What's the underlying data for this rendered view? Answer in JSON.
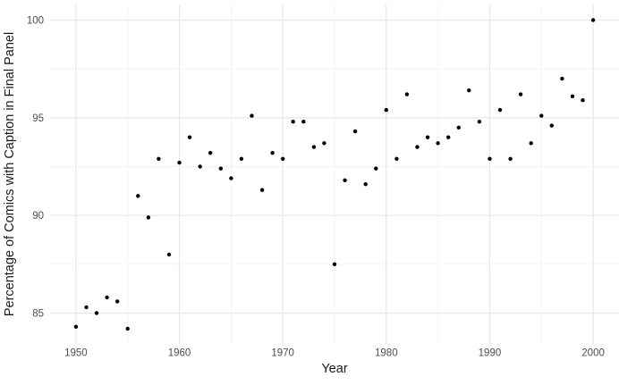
{
  "chart_data": {
    "type": "scatter",
    "title": "",
    "xlabel": "Year",
    "ylabel": "Percentage of Comics with Caption in Final Panel",
    "xlim": [
      1947.5,
      2002.5
    ],
    "ylim": [
      83.4,
      100.8
    ],
    "x_major_ticks": [
      1950,
      1960,
      1970,
      1980,
      1990,
      2000
    ],
    "x_minor_ticks": [
      1955,
      1965,
      1975,
      1985,
      1995
    ],
    "y_major_ticks": [
      85,
      90,
      95,
      100
    ],
    "y_minor_ticks": [
      87.5,
      92.5,
      97.5
    ],
    "grid": "major-and-minor",
    "legend_position": "none",
    "points": [
      [
        1950,
        84.3
      ],
      [
        1951,
        85.3
      ],
      [
        1952,
        85.0
      ],
      [
        1953,
        85.8
      ],
      [
        1954,
        85.6
      ],
      [
        1955,
        84.2
      ],
      [
        1956,
        91.0
      ],
      [
        1957,
        89.9
      ],
      [
        1958,
        92.9
      ],
      [
        1959,
        88.0
      ],
      [
        1960,
        92.7
      ],
      [
        1961,
        94.0
      ],
      [
        1962,
        92.5
      ],
      [
        1963,
        93.2
      ],
      [
        1964,
        92.4
      ],
      [
        1965,
        91.9
      ],
      [
        1966,
        92.9
      ],
      [
        1967,
        95.1
      ],
      [
        1968,
        91.3
      ],
      [
        1969,
        93.2
      ],
      [
        1970,
        92.9
      ],
      [
        1971,
        94.8
      ],
      [
        1972,
        94.8
      ],
      [
        1973,
        93.5
      ],
      [
        1974,
        93.7
      ],
      [
        1975,
        87.5
      ],
      [
        1976,
        91.8
      ],
      [
        1977,
        94.3
      ],
      [
        1978,
        91.6
      ],
      [
        1979,
        92.4
      ],
      [
        1980,
        95.4
      ],
      [
        1981,
        92.9
      ],
      [
        1982,
        96.2
      ],
      [
        1983,
        93.5
      ],
      [
        1984,
        94.0
      ],
      [
        1985,
        93.7
      ],
      [
        1986,
        94.0
      ],
      [
        1987,
        94.5
      ],
      [
        1988,
        96.4
      ],
      [
        1989,
        94.8
      ],
      [
        1990,
        92.9
      ],
      [
        1991,
        95.4
      ],
      [
        1992,
        92.9
      ],
      [
        1993,
        96.2
      ],
      [
        1994,
        93.7
      ],
      [
        1995,
        95.1
      ],
      [
        1996,
        94.6
      ],
      [
        1997,
        97.0
      ],
      [
        1998,
        96.1
      ],
      [
        1999,
        95.9
      ],
      [
        2000,
        100.0
      ]
    ],
    "point_color": "#000000",
    "grid_major_color": "#e9e9e9",
    "grid_minor_color": "#f3f3f3",
    "axis_text_color": "#4d4d4d",
    "axis_title_color": "#1a1a1a",
    "background_color": "#ffffff"
  }
}
